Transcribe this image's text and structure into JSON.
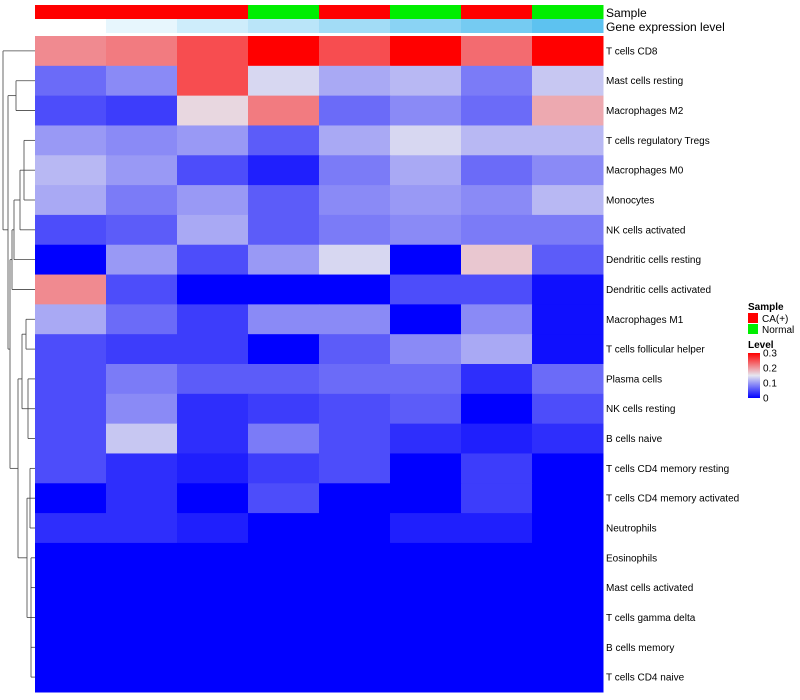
{
  "chart_data": {
    "type": "heatmap",
    "annotation_titles": [
      "Sample",
      "Gene expression level"
    ],
    "samples": [
      "CA(+)",
      "CA(+)",
      "CA(+)",
      "Normal",
      "CA(+)",
      "Normal",
      "CA(+)",
      "Normal"
    ],
    "gene_expression_level": [
      0.0,
      0.06,
      0.12,
      0.17,
      0.23,
      0.29,
      0.34,
      0.4
    ],
    "rows": [
      "T cells CD8",
      "Mast cells resting",
      "Macrophages M2",
      "T cells regulatory  Tregs",
      "Macrophages M0",
      "Monocytes",
      "NK cells activated",
      "Dendritic cells resting",
      "Dendritic cells activated",
      "Macrophages M1",
      "T cells follicular helper",
      "Plasma cells",
      "NK cells resting",
      "B cells naive",
      "T cells CD4 memory resting",
      "T cells CD4 memory activated",
      "Neutrophils",
      "Eosinophils",
      "Mast cells activated",
      "T cells gamma delta",
      "B cells memory",
      "T cells CD4 naive"
    ],
    "values": [
      [
        0.21,
        0.22,
        0.25,
        0.3,
        0.25,
        0.3,
        0.23,
        0.3
      ],
      [
        0.07,
        0.09,
        0.25,
        0.14,
        0.11,
        0.12,
        0.08,
        0.13
      ],
      [
        0.05,
        0.04,
        0.16,
        0.22,
        0.07,
        0.09,
        0.07,
        0.19
      ],
      [
        0.1,
        0.09,
        0.1,
        0.06,
        0.11,
        0.14,
        0.12,
        0.12
      ],
      [
        0.12,
        0.1,
        0.05,
        0.02,
        0.08,
        0.11,
        0.07,
        0.09
      ],
      [
        0.11,
        0.08,
        0.1,
        0.06,
        0.09,
        0.1,
        0.09,
        0.12
      ],
      [
        0.05,
        0.06,
        0.11,
        0.06,
        0.08,
        0.09,
        0.08,
        0.08
      ],
      [
        0.0,
        0.1,
        0.05,
        0.1,
        0.14,
        0.0,
        0.17,
        0.06
      ],
      [
        0.21,
        0.05,
        0.0,
        0.0,
        0.0,
        0.05,
        0.05,
        0.01
      ],
      [
        0.11,
        0.07,
        0.04,
        0.09,
        0.09,
        0.0,
        0.09,
        0.01
      ],
      [
        0.05,
        0.04,
        0.04,
        0.0,
        0.06,
        0.09,
        0.11,
        0.01
      ],
      [
        0.05,
        0.08,
        0.06,
        0.06,
        0.07,
        0.07,
        0.03,
        0.07
      ],
      [
        0.05,
        0.09,
        0.03,
        0.04,
        0.05,
        0.06,
        0.0,
        0.05
      ],
      [
        0.05,
        0.13,
        0.03,
        0.08,
        0.05,
        0.03,
        0.02,
        0.03
      ],
      [
        0.05,
        0.03,
        0.02,
        0.04,
        0.05,
        0.0,
        0.04,
        0.0
      ],
      [
        0.0,
        0.03,
        0.0,
        0.05,
        0.0,
        0.0,
        0.04,
        0.0
      ],
      [
        0.03,
        0.03,
        0.02,
        0.0,
        0.0,
        0.02,
        0.02,
        0.0
      ],
      [
        0.0,
        0.0,
        0.0,
        0.0,
        0.0,
        0.0,
        0.0,
        0.0
      ],
      [
        0.0,
        0.0,
        0.0,
        0.0,
        0.0,
        0.0,
        0.0,
        0.0
      ],
      [
        0.0,
        0.0,
        0.0,
        0.0,
        0.0,
        0.0,
        0.0,
        0.0
      ],
      [
        0.0,
        0.0,
        0.0,
        0.0,
        0.0,
        0.0,
        0.0,
        0.0
      ],
      [
        0.0,
        0.0,
        0.0,
        0.0,
        0.0,
        0.0,
        0.0,
        0.0
      ]
    ],
    "value_range": [
      0,
      0.3
    ],
    "color_scale": {
      "low": "#0000ff",
      "mid": "#e6e6f0",
      "high": "#ff0000"
    },
    "legend": {
      "sample_title": "Sample",
      "sample_entries": [
        {
          "label": "CA(+)",
          "color": "#ff0000"
        },
        {
          "label": "Normal",
          "color": "#00ee00"
        }
      ],
      "level_title": "Level",
      "level_ticks": [
        {
          "value": 0.3,
          "label": "0.3"
        },
        {
          "value": 0.2,
          "label": "0.2"
        },
        {
          "value": 0.1,
          "label": "0.1"
        },
        {
          "value": 0,
          "label": "0"
        }
      ]
    },
    "gene_expression_colors": {
      "low": "#ffffff",
      "high": "#5dc2f0"
    },
    "row_dendrogram": true,
    "xlabel": "",
    "ylabel": ""
  }
}
